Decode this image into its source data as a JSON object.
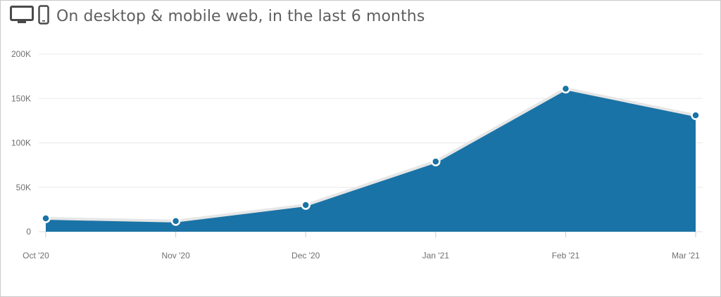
{
  "header": {
    "title": "On desktop & mobile web, in the last 6 months",
    "icons": [
      "desktop-monitor-icon",
      "mobile-phone-icon"
    ]
  },
  "colors": {
    "area_fill": "#1a73a6",
    "area_stroke": "#e6e6e6",
    "point": "#1a73a6",
    "grid": "#e8e8e8",
    "text": "#6f6f6f"
  },
  "chart_data": {
    "type": "area",
    "title": "On desktop & mobile web, in the last 6 months",
    "categories": [
      "Oct '20",
      "Nov '20",
      "Dec '20",
      "Jan '21",
      "Feb '21",
      "Mar '21"
    ],
    "series": [
      {
        "values": [
          15000,
          12000,
          30000,
          79000,
          161000,
          131000
        ]
      }
    ],
    "y_ticks": [
      "0",
      "50K",
      "100K",
      "150K",
      "200K"
    ],
    "y_tick_values": [
      0,
      50000,
      100000,
      150000,
      200000
    ],
    "ylim": [
      0,
      200000
    ],
    "xlabel": "",
    "ylabel": "",
    "grid": true,
    "legend": "none"
  }
}
